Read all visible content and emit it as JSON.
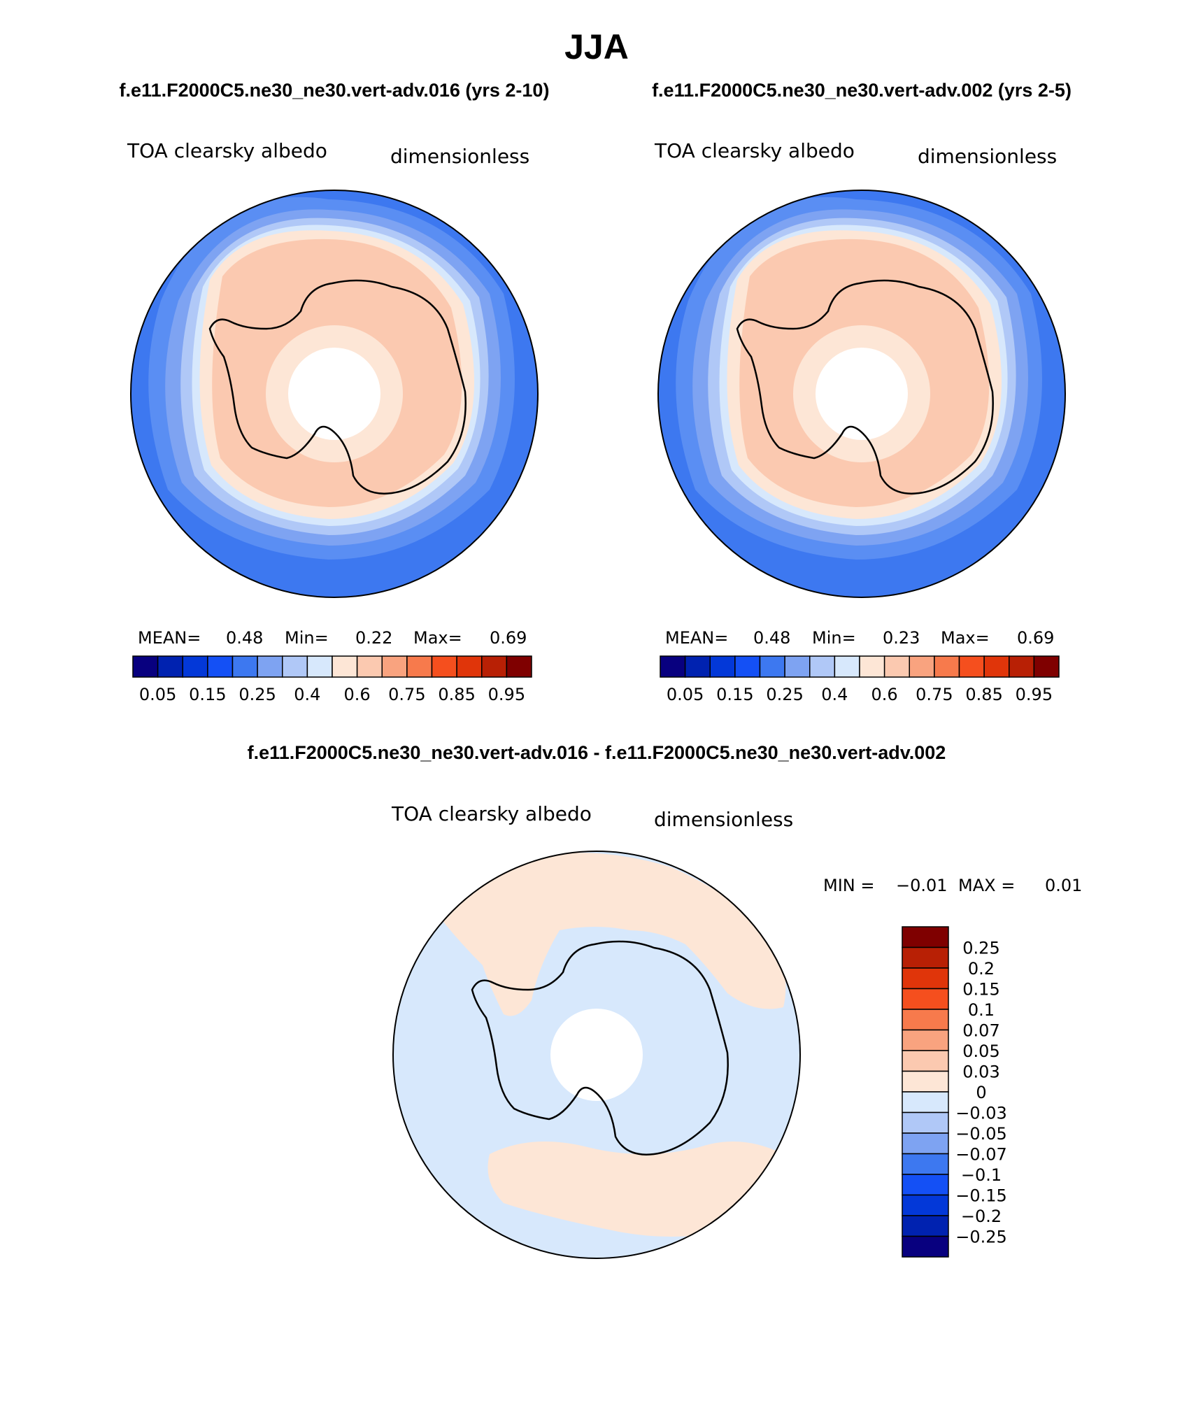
{
  "title": "JJA",
  "panel_titles": {
    "left": "f.e11.F2000C5.ne30_ne30.vert-adv.016 (yrs 2-10)",
    "right": "f.e11.F2000C5.ne30_ne30.vert-adv.002 (yrs 2-5)",
    "diff": "f.e11.F2000C5.ne30_ne30.vert-adv.016 - f.e11.F2000C5.ne30_ne30.vert-adv.002"
  },
  "variable": "TOA clearsky albedo",
  "units": "dimensionless",
  "panels": [
    {
      "id": "left",
      "stats": {
        "mean_label": "MEAN=",
        "mean": "0.48",
        "min_label": "Min=",
        "min": "0.22",
        "max_label": "Max=",
        "max": "0.69"
      }
    },
    {
      "id": "right",
      "stats": {
        "mean_label": "MEAN=",
        "mean": "0.48",
        "min_label": "Min=",
        "min": "0.23",
        "max_label": "Max=",
        "max": "0.69"
      }
    }
  ],
  "diff_stats": {
    "min_label": "MIN =",
    "min": "−0.01",
    "max_label": "MAX =",
    "max": "0.01"
  },
  "colorbar_main": {
    "colors": [
      "#08007f",
      "#0022b0",
      "#0338d8",
      "#1450f5",
      "#3d78f0",
      "#7ea3f2",
      "#b0c8f7",
      "#d7e8fc",
      "#fde6d6",
      "#fbc9b0",
      "#f9a37f",
      "#f77a4c",
      "#f54f1e",
      "#e0350a",
      "#b82005",
      "#7f0000"
    ],
    "labels": [
      "0.05",
      "0.15",
      "0.25",
      "0.4",
      "0.6",
      "0.75",
      "0.85",
      "0.95"
    ]
  },
  "colorbar_diff": {
    "colors": [
      "#7f0000",
      "#b82005",
      "#e0350a",
      "#f54f1e",
      "#f77a4c",
      "#f9a37f",
      "#fbc9b0",
      "#fde6d6",
      "#d7e8fc",
      "#b0c8f7",
      "#7ea3f2",
      "#3d78f0",
      "#1450f5",
      "#0338d8",
      "#0022b0",
      "#08007f"
    ],
    "labels": [
      "0.25",
      "0.2",
      "0.15",
      "0.1",
      "0.07",
      "0.05",
      "0.03",
      "0",
      "−0.03",
      "−0.05",
      "−0.07",
      "−0.1",
      "−0.15",
      "−0.2",
      "−0.25"
    ]
  },
  "map_colors": {
    "ring_outer": "#3d78f0",
    "ring_2": "#5a8ef3",
    "ring_3": "#7ea3f2",
    "ring_4": "#b0c8f7",
    "ring_5": "#d7e8fc",
    "ring_6": "#fde6d6",
    "land_main": "#fbc9b0",
    "pole_ring": "#fde6d6",
    "diff_blue": "#d7e8fc",
    "diff_orange": "#fde6d6"
  }
}
